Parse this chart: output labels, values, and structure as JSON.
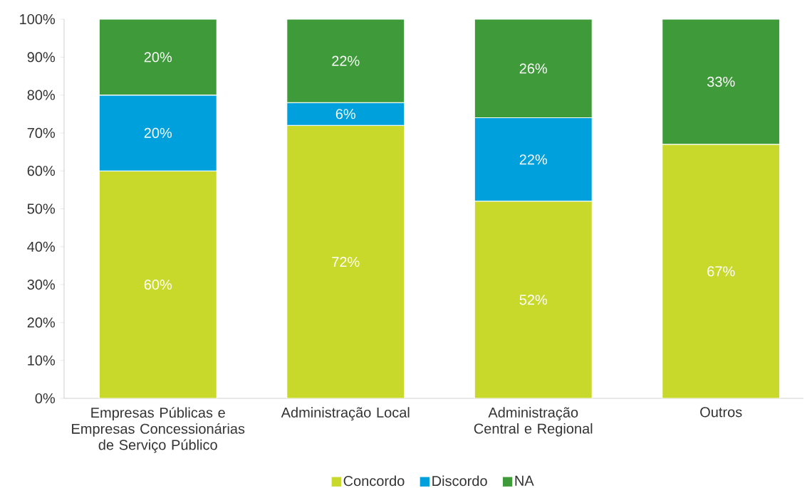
{
  "chart_data": {
    "type": "bar",
    "stacked": true,
    "categories": [
      "Empresas Públicas e Empresas Concessionárias de Serviço Público",
      "Administração Local",
      "Administração Central e Regional",
      "Outros"
    ],
    "series": [
      {
        "name": "Concordo",
        "color": "#c8d92b",
        "values": [
          60,
          72,
          52,
          67
        ],
        "value_labels": [
          "60%",
          "72%",
          "52%",
          "67%"
        ]
      },
      {
        "name": "Discordo",
        "color": "#00a0dc",
        "values": [
          20,
          6,
          22,
          null
        ],
        "value_labels": [
          "20%",
          "6%",
          "22%",
          null
        ]
      },
      {
        "name": "NA",
        "color": "#3f9a3a",
        "values": [
          20,
          22,
          26,
          33
        ],
        "value_labels": [
          "20%",
          "22%",
          "26%",
          "33%"
        ]
      }
    ],
    "ylim": [
      0,
      100
    ],
    "yticks": [
      {
        "value": 0,
        "label": "0%"
      },
      {
        "value": 10,
        "label": "10%"
      },
      {
        "value": 20,
        "label": "20%"
      },
      {
        "value": 30,
        "label": "30%"
      },
      {
        "value": 40,
        "label": "40%"
      },
      {
        "value": 50,
        "label": "50%"
      },
      {
        "value": 60,
        "label": "60%"
      },
      {
        "value": 70,
        "label": "70%"
      },
      {
        "value": 80,
        "label": "80%"
      },
      {
        "value": 90,
        "label": "90%"
      },
      {
        "value": 100,
        "label": "100%"
      }
    ],
    "legend": "bottom"
  }
}
